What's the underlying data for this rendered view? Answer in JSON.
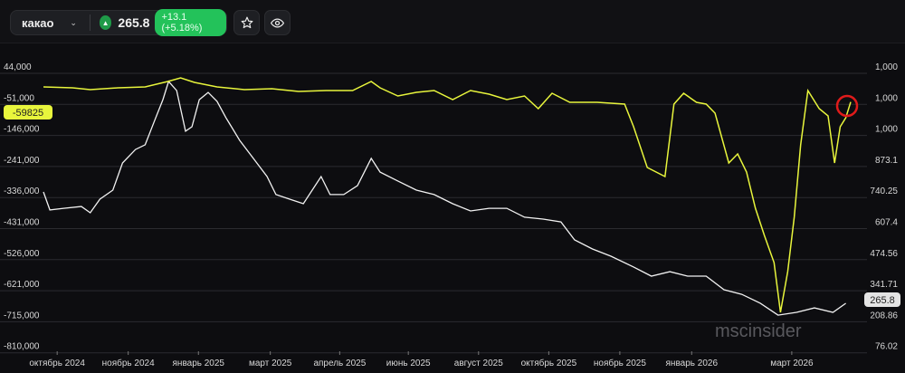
{
  "header": {
    "symbol": "какао",
    "price": "265.8",
    "change": "+13.1 (+5.18%)"
  },
  "chart_data": {
    "type": "line",
    "left_axis": {
      "ticks": [
        "44,000",
        "-51,000",
        "-146,000",
        "-241,000",
        "-336,000",
        "-431,000",
        "-526,000",
        "-621,000",
        "-715,000",
        "-810,000"
      ],
      "range": [
        -810000,
        44000
      ]
    },
    "right_axis": {
      "ticks": [
        "1,000",
        "1,000",
        "1,000",
        "873.1",
        "740.25",
        "607.4",
        "474.56",
        "341.71",
        "208.86",
        "76.02"
      ],
      "range": [
        76.02,
        1273
      ]
    },
    "x_ticks": [
      {
        "t": 1.7,
        "label": "октябрь 2024"
      },
      {
        "t": 10.5,
        "label": "ноябрь 2024"
      },
      {
        "t": 19.2,
        "label": "январь 2025"
      },
      {
        "t": 28.1,
        "label": "март 2025"
      },
      {
        "t": 36.7,
        "label": "апрель 2025"
      },
      {
        "t": 45.2,
        "label": "июнь 2025"
      },
      {
        "t": 53.9,
        "label": "август 2025"
      },
      {
        "t": 62.6,
        "label": "октябрь 2025"
      },
      {
        "t": 71.4,
        "label": "ноябрь 2025"
      },
      {
        "t": 80.3,
        "label": "январь 2026"
      },
      {
        "t": 92.7,
        "label": "март 2026"
      }
    ],
    "series": [
      {
        "name": "yellow",
        "axis": "left",
        "color": "#e8f53c",
        "last_label": "-59825",
        "points": [
          [
            0,
            -14000
          ],
          [
            3.6,
            -16800
          ],
          [
            5.8,
            -22300
          ],
          [
            9.2,
            -16800
          ],
          [
            12.6,
            -14000
          ],
          [
            15.4,
            2500
          ],
          [
            17,
            13600
          ],
          [
            18.7,
            -200
          ],
          [
            21.5,
            -14000
          ],
          [
            24.9,
            -22300
          ],
          [
            28.3,
            -19600
          ],
          [
            31.6,
            -27900
          ],
          [
            35,
            -25100
          ],
          [
            38.3,
            -25100
          ],
          [
            40.6,
            2500
          ],
          [
            41.7,
            -16800
          ],
          [
            43.9,
            -41700
          ],
          [
            46.2,
            -30600
          ],
          [
            48.4,
            -25100
          ],
          [
            50.7,
            -52700
          ],
          [
            52.9,
            -25100
          ],
          [
            55.2,
            -36200
          ],
          [
            57.4,
            -52700
          ],
          [
            59.6,
            -41700
          ],
          [
            61.3,
            -80400
          ],
          [
            63,
            -33400
          ],
          [
            65.2,
            -61000
          ],
          [
            68.6,
            -61000
          ],
          [
            72,
            -66600
          ],
          [
            73.1,
            -135700
          ],
          [
            74.8,
            -260000
          ],
          [
            77,
            -287700
          ],
          [
            78.1,
            -66600
          ],
          [
            79.3,
            -33400
          ],
          [
            80.9,
            -61000
          ],
          [
            82.1,
            -66600
          ],
          [
            83.2,
            -94200
          ],
          [
            84.9,
            -246200
          ],
          [
            86,
            -218600
          ],
          [
            87.1,
            -273900
          ],
          [
            88.2,
            -384400
          ],
          [
            89.3,
            -467300
          ],
          [
            90.5,
            -550300
          ],
          [
            91.3,
            -702300
          ],
          [
            92.2,
            -577900
          ],
          [
            93,
            -412100
          ],
          [
            93.8,
            -191000
          ],
          [
            94.7,
            -25100
          ],
          [
            96.1,
            -80400
          ],
          [
            97.2,
            -102500
          ],
          [
            98,
            -246200
          ],
          [
            98.7,
            -135700
          ],
          [
            99.4,
            -108000
          ],
          [
            100,
            -59825
          ]
        ]
      },
      {
        "name": "white",
        "axis": "right",
        "color": "#f2f2f2",
        "last_label": "265.8",
        "points": [
          [
            0,
            742
          ],
          [
            0.8,
            665
          ],
          [
            2.5,
            672
          ],
          [
            4.7,
            680
          ],
          [
            5.8,
            653
          ],
          [
            7,
            711
          ],
          [
            8.6,
            750
          ],
          [
            9.8,
            866
          ],
          [
            11.4,
            924
          ],
          [
            12.6,
            944
          ],
          [
            13.7,
            1041
          ],
          [
            14.8,
            1137
          ],
          [
            15.5,
            1215
          ],
          [
            16.5,
            1176
          ],
          [
            17.6,
            1002
          ],
          [
            18.4,
            1021
          ],
          [
            19.3,
            1137
          ],
          [
            20.4,
            1168
          ],
          [
            21.5,
            1130
          ],
          [
            22.6,
            1060
          ],
          [
            24.3,
            963
          ],
          [
            26,
            886
          ],
          [
            27.7,
            808
          ],
          [
            28.8,
            731
          ],
          [
            30.5,
            711
          ],
          [
            32.2,
            692
          ],
          [
            33.3,
            750
          ],
          [
            34.4,
            808
          ],
          [
            35.5,
            731
          ],
          [
            37.2,
            731
          ],
          [
            38.9,
            769
          ],
          [
            40.6,
            886
          ],
          [
            41.7,
            827
          ],
          [
            43.9,
            789
          ],
          [
            46.2,
            750
          ],
          [
            48.4,
            731
          ],
          [
            50.7,
            692
          ],
          [
            52.9,
            661
          ],
          [
            55.2,
            672
          ],
          [
            57.4,
            672
          ],
          [
            59.6,
            634
          ],
          [
            61.9,
            626
          ],
          [
            64.1,
            614
          ],
          [
            65.8,
            537
          ],
          [
            68,
            498
          ],
          [
            70.3,
            467
          ],
          [
            73.1,
            421
          ],
          [
            75.3,
            382
          ],
          [
            77.6,
            401
          ],
          [
            79.8,
            382
          ],
          [
            82.1,
            382
          ],
          [
            84.3,
            324
          ],
          [
            86.5,
            304
          ],
          [
            88.8,
            266
          ],
          [
            91,
            215
          ],
          [
            93.3,
            227
          ],
          [
            95.5,
            246
          ],
          [
            97.8,
            227
          ],
          [
            99.4,
            265.8
          ]
        ]
      }
    ]
  },
  "watermark": "mscinsider"
}
